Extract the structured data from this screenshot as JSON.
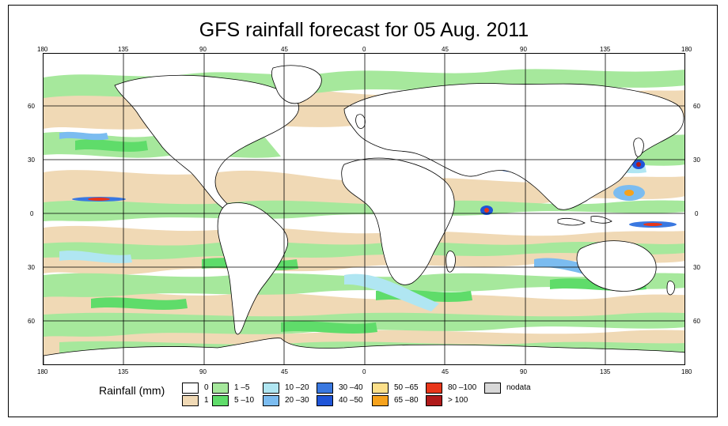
{
  "title": "GFS rainfall forecast for 05 Aug. 2011",
  "map": {
    "top_ticks": [
      "180",
      "135",
      "90",
      "45",
      "0",
      "45",
      "90",
      "135",
      "180"
    ],
    "bottom_ticks": [
      "180",
      "135",
      "90",
      "45",
      "0",
      "45",
      "90",
      "135",
      "180"
    ],
    "left_ticks": [
      "60",
      "30",
      "0",
      "30",
      "60"
    ],
    "right_ticks": [
      "60",
      "30",
      "0",
      "30",
      "60"
    ],
    "colors": {
      "c0": "#ffffff",
      "c1": "#f0d9b5",
      "c1_5": "#a6e89c",
      "c5_10": "#5fdc6a",
      "c10_20": "#b0e6f2",
      "c20_30": "#7bbcf0",
      "c30_40": "#3a78e0",
      "c40_50": "#1f55d8",
      "c50_65": "#fde08a",
      "c65_80": "#f6a21c",
      "c80_100": "#e8361a",
      "c100": "#b01a1a",
      "nodata": "#d8d8d8"
    }
  },
  "legend": {
    "title": "Rainfall (mm)",
    "items": [
      {
        "label": "0",
        "color": "#ffffff"
      },
      {
        "label": "1",
        "color": "#f0d9b5"
      },
      {
        "label": "1 –5",
        "color": "#a6e89c"
      },
      {
        "label": "5 –10",
        "color": "#5fdc6a"
      },
      {
        "label": "10 –20",
        "color": "#b0e6f2"
      },
      {
        "label": "20 –30",
        "color": "#7bbcf0"
      },
      {
        "label": "30 –40",
        "color": "#3a78e0"
      },
      {
        "label": "40 –50",
        "color": "#1f55d8"
      },
      {
        "label": "50 –65",
        "color": "#fde08a"
      },
      {
        "label": "65 –80",
        "color": "#f6a21c"
      },
      {
        "label": "80 –100",
        "color": "#e8361a"
      },
      {
        "label": "> 100",
        "color": "#b01a1a"
      },
      {
        "label": "nodata",
        "color": "#d8d8d8"
      }
    ]
  }
}
